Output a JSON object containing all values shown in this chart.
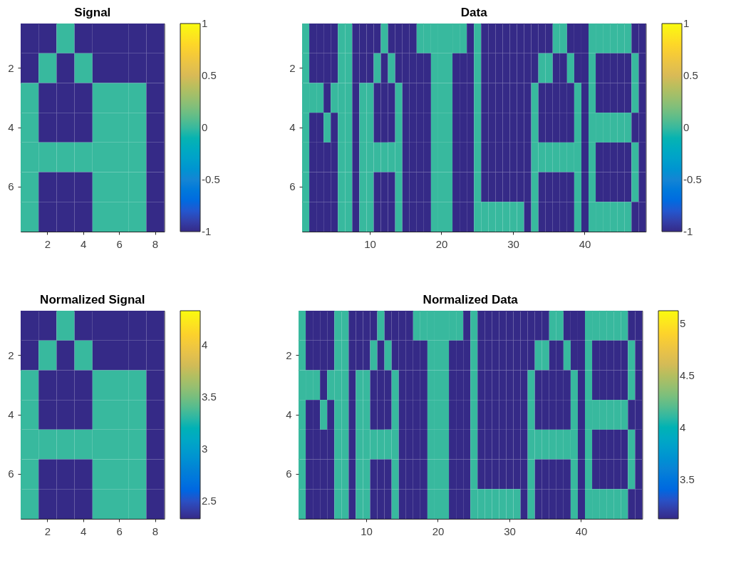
{
  "chart_data": [
    {
      "type": "heatmap",
      "title": "Signal",
      "categories": [
        null,
        "2",
        null,
        "4",
        null,
        "6",
        null,
        "8"
      ],
      "y_categories": [
        null,
        "2",
        null,
        "4",
        null,
        "6",
        null
      ],
      "cells": [
        [
          -1,
          -1,
          0,
          -1,
          -1,
          -1,
          -1,
          -1
        ],
        [
          -1,
          0,
          -1,
          0,
          -1,
          -1,
          -1,
          -1
        ],
        [
          0,
          -1,
          -1,
          -1,
          0,
          0,
          0,
          -1
        ],
        [
          0,
          -1,
          -1,
          -1,
          0,
          0,
          0,
          -1
        ],
        [
          0,
          0,
          0,
          0,
          0,
          0,
          0,
          -1
        ],
        [
          0,
          -1,
          -1,
          -1,
          0,
          0,
          0,
          -1
        ],
        [
          0,
          -1,
          -1,
          -1,
          0,
          0,
          0,
          -1
        ]
      ],
      "clim": [
        -1,
        1
      ],
      "cticks": [
        -1,
        -0.5,
        0,
        0.5,
        1
      ]
    },
    {
      "type": "heatmap",
      "title": "Data",
      "categories": [
        null,
        null,
        null,
        null,
        null,
        null,
        null,
        null,
        null,
        "10",
        null,
        null,
        null,
        null,
        null,
        null,
        null,
        null,
        null,
        "20",
        null,
        null,
        null,
        null,
        null,
        null,
        null,
        null,
        null,
        "30",
        null,
        null,
        null,
        null,
        null,
        null,
        null,
        null,
        null,
        "40",
        null,
        null,
        null,
        null,
        null,
        null,
        null,
        null
      ],
      "y_categories": [
        null,
        "2",
        null,
        "4",
        null,
        "6",
        null
      ],
      "cells": [
        [
          0,
          -1,
          -1,
          -1,
          -1,
          0,
          0,
          -1,
          -1,
          -1,
          -1,
          0,
          -1,
          -1,
          -1,
          -1,
          0,
          0,
          0,
          0,
          0,
          0,
          0,
          -1,
          0,
          -1,
          -1,
          -1,
          -1,
          -1,
          -1,
          -1,
          -1,
          -1,
          -1,
          0,
          0,
          -1,
          -1,
          -1,
          0,
          0,
          0,
          0,
          0,
          0,
          -1,
          -1
        ],
        [
          0,
          -1,
          -1,
          -1,
          -1,
          0,
          0,
          -1,
          -1,
          -1,
          0,
          -1,
          0,
          -1,
          -1,
          -1,
          -1,
          -1,
          0,
          0,
          0,
          -1,
          -1,
          -1,
          0,
          -1,
          -1,
          -1,
          -1,
          -1,
          -1,
          -1,
          -1,
          0,
          0,
          -1,
          -1,
          0,
          -1,
          -1,
          0,
          -1,
          -1,
          -1,
          -1,
          -1,
          0,
          -1
        ],
        [
          0,
          0,
          0,
          -1,
          0,
          0,
          0,
          -1,
          0,
          0,
          -1,
          -1,
          -1,
          0,
          -1,
          -1,
          -1,
          -1,
          0,
          0,
          0,
          -1,
          -1,
          -1,
          0,
          -1,
          -1,
          -1,
          -1,
          -1,
          -1,
          -1,
          0,
          -1,
          -1,
          -1,
          -1,
          -1,
          0,
          -1,
          0,
          -1,
          -1,
          -1,
          -1,
          -1,
          0,
          -1
        ],
        [
          0,
          -1,
          -1,
          0,
          -1,
          0,
          0,
          -1,
          0,
          0,
          -1,
          -1,
          -1,
          0,
          -1,
          -1,
          -1,
          -1,
          0,
          0,
          0,
          -1,
          -1,
          -1,
          0,
          -1,
          -1,
          -1,
          -1,
          -1,
          -1,
          -1,
          0,
          -1,
          -1,
          -1,
          -1,
          -1,
          0,
          -1,
          0,
          0,
          0,
          0,
          0,
          0,
          -1,
          -1
        ],
        [
          0,
          -1,
          -1,
          -1,
          -1,
          0,
          0,
          -1,
          0,
          0,
          0,
          0,
          0,
          0,
          -1,
          -1,
          -1,
          -1,
          0,
          0,
          0,
          -1,
          -1,
          -1,
          0,
          -1,
          -1,
          -1,
          -1,
          -1,
          -1,
          -1,
          0,
          0,
          0,
          0,
          0,
          0,
          0,
          -1,
          0,
          -1,
          -1,
          -1,
          -1,
          -1,
          0,
          -1
        ],
        [
          0,
          -1,
          -1,
          -1,
          -1,
          0,
          0,
          -1,
          0,
          0,
          -1,
          -1,
          -1,
          0,
          -1,
          -1,
          -1,
          -1,
          0,
          0,
          0,
          -1,
          -1,
          -1,
          0,
          -1,
          -1,
          -1,
          -1,
          -1,
          -1,
          -1,
          0,
          -1,
          -1,
          -1,
          -1,
          -1,
          0,
          -1,
          0,
          -1,
          -1,
          -1,
          -1,
          -1,
          0,
          -1
        ],
        [
          0,
          -1,
          -1,
          -1,
          -1,
          0,
          0,
          -1,
          0,
          0,
          -1,
          -1,
          -1,
          0,
          -1,
          -1,
          -1,
          -1,
          0,
          0,
          0,
          -1,
          -1,
          -1,
          0,
          0,
          0,
          0,
          0,
          0,
          0,
          -1,
          0,
          -1,
          -1,
          -1,
          -1,
          -1,
          0,
          -1,
          0,
          0,
          0,
          0,
          0,
          0,
          -1,
          -1
        ]
      ],
      "clim": [
        -1,
        1
      ],
      "cticks": [
        -1,
        -0.5,
        0,
        0.5,
        1
      ]
    },
    {
      "type": "heatmap",
      "title": "Normalized Signal",
      "categories": [
        null,
        "2",
        null,
        "4",
        null,
        "6",
        null,
        "8"
      ],
      "y_categories": [
        null,
        "2",
        null,
        "4",
        null,
        "6",
        null
      ],
      "cells": [
        [
          2.33,
          2.33,
          3.33,
          2.33,
          2.33,
          2.33,
          2.33,
          2.33
        ],
        [
          2.33,
          3.33,
          2.33,
          3.33,
          2.33,
          2.33,
          2.33,
          2.33
        ],
        [
          3.33,
          2.33,
          2.33,
          2.33,
          3.33,
          3.33,
          3.33,
          2.33
        ],
        [
          3.33,
          2.33,
          2.33,
          2.33,
          3.33,
          3.33,
          3.33,
          2.33
        ],
        [
          3.33,
          3.33,
          3.33,
          3.33,
          3.33,
          3.33,
          3.33,
          2.33
        ],
        [
          3.33,
          2.33,
          2.33,
          2.33,
          3.33,
          3.33,
          3.33,
          2.33
        ],
        [
          3.33,
          2.33,
          2.33,
          2.33,
          3.33,
          3.33,
          3.33,
          2.33
        ]
      ],
      "clim": [
        2.33,
        4.33
      ],
      "cticks": [
        2.5,
        3,
        3.5,
        4
      ]
    },
    {
      "type": "heatmap",
      "title": "Normalized Data",
      "categories": [
        null,
        null,
        null,
        null,
        null,
        null,
        null,
        null,
        null,
        "10",
        null,
        null,
        null,
        null,
        null,
        null,
        null,
        null,
        null,
        "20",
        null,
        null,
        null,
        null,
        null,
        null,
        null,
        null,
        null,
        "30",
        null,
        null,
        null,
        null,
        null,
        null,
        null,
        null,
        null,
        "40",
        null,
        null,
        null,
        null,
        null,
        null,
        null,
        null
      ],
      "y_categories": [
        null,
        "2",
        null,
        "4",
        null,
        "6",
        null
      ],
      "cells": [
        [
          4.12,
          3.12,
          3.12,
          3.12,
          3.12,
          4.12,
          4.12,
          3.12,
          3.12,
          3.12,
          3.12,
          4.12,
          3.12,
          3.12,
          3.12,
          3.12,
          4.12,
          4.12,
          4.12,
          4.12,
          4.12,
          4.12,
          4.12,
          3.12,
          4.12,
          3.12,
          3.12,
          3.12,
          3.12,
          3.12,
          3.12,
          3.12,
          3.12,
          3.12,
          3.12,
          4.12,
          4.12,
          3.12,
          3.12,
          3.12,
          4.12,
          4.12,
          4.12,
          4.12,
          4.12,
          4.12,
          3.12,
          3.12
        ],
        [
          4.12,
          3.12,
          3.12,
          3.12,
          3.12,
          4.12,
          4.12,
          3.12,
          3.12,
          3.12,
          4.12,
          3.12,
          4.12,
          3.12,
          3.12,
          3.12,
          3.12,
          3.12,
          4.12,
          4.12,
          4.12,
          3.12,
          3.12,
          3.12,
          4.12,
          3.12,
          3.12,
          3.12,
          3.12,
          3.12,
          3.12,
          3.12,
          3.12,
          4.12,
          4.12,
          3.12,
          3.12,
          4.12,
          3.12,
          3.12,
          4.12,
          3.12,
          3.12,
          3.12,
          3.12,
          3.12,
          4.12,
          3.12
        ],
        [
          4.12,
          4.12,
          4.12,
          3.12,
          4.12,
          4.12,
          4.12,
          3.12,
          4.12,
          4.12,
          3.12,
          3.12,
          3.12,
          4.12,
          3.12,
          3.12,
          3.12,
          3.12,
          4.12,
          4.12,
          4.12,
          3.12,
          3.12,
          3.12,
          4.12,
          3.12,
          3.12,
          3.12,
          3.12,
          3.12,
          3.12,
          3.12,
          4.12,
          3.12,
          3.12,
          3.12,
          3.12,
          3.12,
          4.12,
          3.12,
          4.12,
          3.12,
          3.12,
          3.12,
          3.12,
          3.12,
          4.12,
          3.12
        ],
        [
          4.12,
          3.12,
          3.12,
          4.12,
          3.12,
          4.12,
          4.12,
          3.12,
          4.12,
          4.12,
          3.12,
          3.12,
          3.12,
          4.12,
          3.12,
          3.12,
          3.12,
          3.12,
          4.12,
          4.12,
          4.12,
          3.12,
          3.12,
          3.12,
          4.12,
          3.12,
          3.12,
          3.12,
          3.12,
          3.12,
          3.12,
          3.12,
          4.12,
          3.12,
          3.12,
          3.12,
          3.12,
          3.12,
          4.12,
          3.12,
          4.12,
          4.12,
          4.12,
          4.12,
          4.12,
          4.12,
          3.12,
          3.12
        ],
        [
          4.12,
          3.12,
          3.12,
          3.12,
          3.12,
          4.12,
          4.12,
          3.12,
          4.12,
          4.12,
          4.12,
          4.12,
          4.12,
          4.12,
          3.12,
          3.12,
          3.12,
          3.12,
          4.12,
          4.12,
          4.12,
          3.12,
          3.12,
          3.12,
          4.12,
          3.12,
          3.12,
          3.12,
          3.12,
          3.12,
          3.12,
          3.12,
          4.12,
          4.12,
          4.12,
          4.12,
          4.12,
          4.12,
          4.12,
          3.12,
          4.12,
          3.12,
          3.12,
          3.12,
          3.12,
          3.12,
          4.12,
          3.12
        ],
        [
          4.12,
          3.12,
          3.12,
          3.12,
          3.12,
          4.12,
          4.12,
          3.12,
          4.12,
          4.12,
          3.12,
          3.12,
          3.12,
          4.12,
          3.12,
          3.12,
          3.12,
          3.12,
          4.12,
          4.12,
          4.12,
          3.12,
          3.12,
          3.12,
          4.12,
          3.12,
          3.12,
          3.12,
          3.12,
          3.12,
          3.12,
          3.12,
          4.12,
          3.12,
          3.12,
          3.12,
          3.12,
          3.12,
          4.12,
          3.12,
          4.12,
          3.12,
          3.12,
          3.12,
          3.12,
          3.12,
          4.12,
          3.12
        ],
        [
          4.12,
          3.12,
          3.12,
          3.12,
          3.12,
          4.12,
          4.12,
          3.12,
          4.12,
          4.12,
          3.12,
          3.12,
          3.12,
          4.12,
          3.12,
          3.12,
          3.12,
          3.12,
          4.12,
          4.12,
          4.12,
          3.12,
          3.12,
          3.12,
          4.12,
          4.12,
          4.12,
          4.12,
          4.12,
          4.12,
          4.12,
          3.12,
          4.12,
          3.12,
          3.12,
          3.12,
          3.12,
          3.12,
          4.12,
          3.12,
          4.12,
          4.12,
          4.12,
          4.12,
          4.12,
          4.12,
          3.12,
          3.12
        ]
      ],
      "clim": [
        3.12,
        5.12
      ],
      "cticks": [
        3.5,
        4,
        4.5,
        5
      ]
    }
  ]
}
